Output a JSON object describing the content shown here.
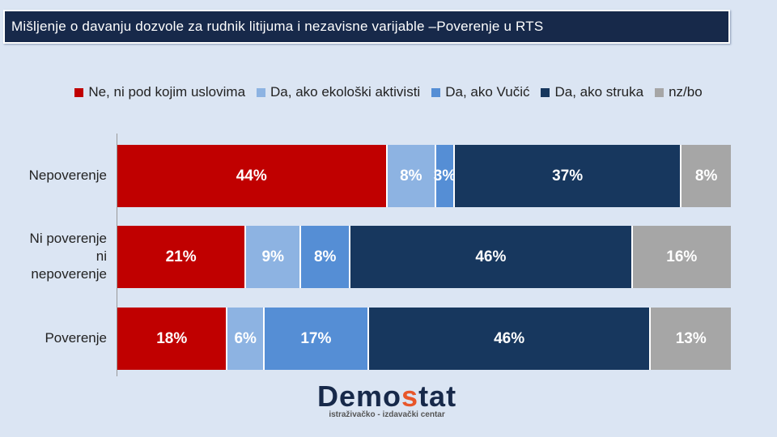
{
  "chart_data": {
    "type": "bar",
    "stacked": true,
    "orientation": "horizontal",
    "title": "Mišljenje o davanju dozvole za rudnik litijuma i nezavisne varijable –Poverenje  u RTS",
    "categories": [
      "Nepoverenje",
      "Ni poverenje ni nepoverenje",
      "Poverenje"
    ],
    "category_lines": [
      [
        "Nepoverenje"
      ],
      [
        "Ni poverenje",
        "ni",
        "nepoverenje"
      ],
      [
        "Poverenje"
      ]
    ],
    "series": [
      {
        "name": "Ne, ni pod kojim uslovima",
        "color": "#c00000",
        "values": [
          44,
          21,
          18
        ]
      },
      {
        "name": "Da, ako ekološki aktivisti",
        "color": "#8db3e2",
        "values": [
          8,
          9,
          6
        ]
      },
      {
        "name": "Da, ako Vučić",
        "color": "#558ed5",
        "values": [
          3,
          8,
          17
        ]
      },
      {
        "name": "Da, ako struka",
        "color": "#17375e",
        "values": [
          37,
          46,
          46
        ]
      },
      {
        "name": "nz/bo",
        "color": "#a6a6a6",
        "values": [
          8,
          16,
          13
        ]
      }
    ],
    "legend_position": "top",
    "xlim": [
      0,
      100
    ]
  },
  "logo": {
    "name_a": "Demo",
    "name_b": "s",
    "name_c": "tat",
    "tagline": "istraživačko - izdavački  centar"
  }
}
